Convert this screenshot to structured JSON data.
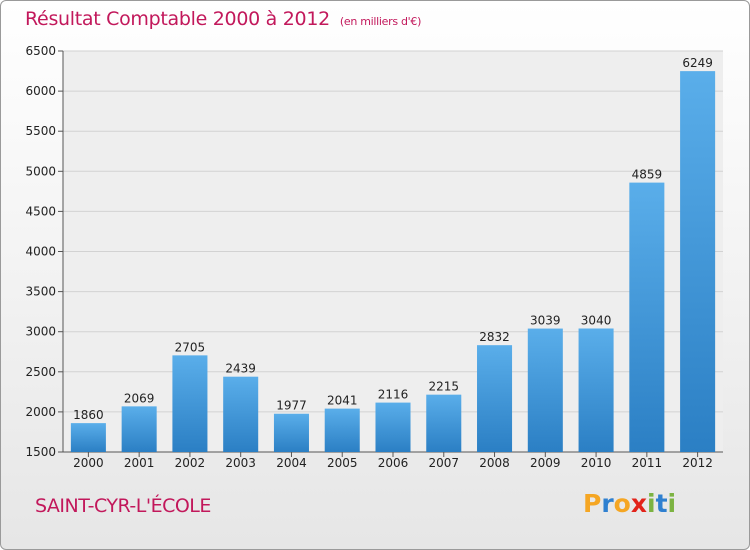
{
  "title": "Résultat Comptable 2000 à 2012",
  "unit": "(en milliers d'€)",
  "commune": "SAINT-CYR-L'ÉCOLE",
  "logo": "Proxiti",
  "colors": {
    "bar": "#3f9ee0",
    "title": "#c2185b"
  },
  "chart_data": {
    "type": "bar",
    "title": "Résultat Comptable 2000 à 2012",
    "xlabel": "",
    "ylabel": "",
    "categories": [
      "2000",
      "2001",
      "2002",
      "2003",
      "2004",
      "2005",
      "2006",
      "2007",
      "2008",
      "2009",
      "2010",
      "2011",
      "2012"
    ],
    "values": [
      1860,
      2069,
      2705,
      2439,
      1977,
      2041,
      2116,
      2215,
      2832,
      3039,
      3040,
      4859,
      6249
    ],
    "ylim": [
      1500,
      6500
    ],
    "yticks": [
      1500,
      2000,
      2500,
      3000,
      3500,
      4000,
      4500,
      5000,
      5500,
      6000,
      6500
    ],
    "grid": true,
    "data_labels": true
  }
}
